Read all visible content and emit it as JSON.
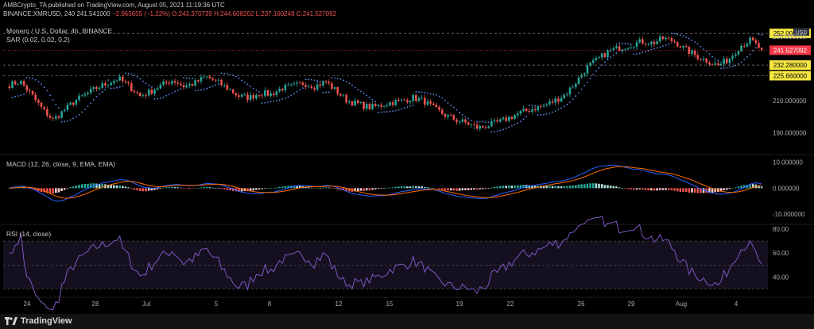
{
  "header": {
    "line1": "AMBCrypto_TA published on TradingView.com, August 05, 2021 11:19:36 UTC",
    "symbol": "BINANCE:XMRUSD, 240",
    "last": "241.541000",
    "change": "−2.965655 (−1.22%)",
    "ohlc": "O:243.370739 H:244.608202 L:237.160248 C:241.527092"
  },
  "price_legend": {
    "title": "Monero / U.S. Dollar, 4h, BINANCE",
    "indicator": "SAR (0.02, 0.02, 0.2)"
  },
  "macd_legend": "MACD (12, 26, close, 9, EMA, EMA)",
  "rsi_legend": "RSI (14, close)",
  "footer": {
    "brand": "TradingView"
  },
  "colors": {
    "up": "#26a69a",
    "down": "#ef5350",
    "sar": "#5b8ff0",
    "rsi": "#7e57c2",
    "macd": "#2962ff",
    "signal": "#ff6d00",
    "price_tag": "#f23645",
    "level_tag": "#f5e642"
  },
  "chart_data": [
    {
      "type": "candlestick",
      "title": "Monero / U.S. Dollar, 4h, BINANCE",
      "ylim": [
        178,
        258
      ],
      "y_ticks": [
        190.0,
        210.0,
        250.0
      ],
      "y_tick_labels": [
        "190.000000",
        "210.000000",
        "250.000000"
      ],
      "x_ticks": [
        "24",
        "28",
        "Jul",
        "5",
        "8",
        "12",
        "15",
        "19",
        "22",
        "26",
        "29",
        "Aug",
        "4"
      ],
      "price_levels": [
        {
          "value": 252.0,
          "label": "252.000000",
          "style": "dashed"
        },
        {
          "value": 241.527092,
          "label": "241.527092",
          "style": "last"
        },
        {
          "value": 232.28,
          "label": "232.280000",
          "style": "dashed"
        },
        {
          "value": 225.66,
          "label": "225.660000",
          "style": "dashed"
        }
      ],
      "currency_tag": "USD",
      "approx_close_path": [
        220,
        222,
        214,
        205,
        198,
        204,
        210,
        214,
        218,
        221,
        224,
        219,
        213,
        216,
        220,
        223,
        219,
        221,
        225,
        222,
        218,
        213,
        212,
        215,
        214,
        218,
        219,
        221,
        219,
        222,
        216,
        210,
        208,
        206,
        207,
        209,
        210,
        212,
        210,
        205,
        201,
        198,
        196,
        193,
        195,
        197,
        200,
        203,
        205,
        207,
        210,
        214,
        222,
        231,
        236,
        241,
        243,
        245,
        247,
        246,
        249,
        247,
        242,
        238,
        235,
        232,
        236,
        244,
        248,
        241.5
      ]
    },
    {
      "type": "macd",
      "title": "MACD (12, 26, close, 9, EMA, EMA)",
      "ylim": [
        -13,
        12
      ],
      "y_tick_labels": [
        "10.000000",
        "0.000000",
        "-10.000000"
      ]
    },
    {
      "type": "rsi",
      "title": "RSI (14, close)",
      "ylim": [
        25,
        82
      ],
      "y_tick_labels": [
        "80.00",
        "60.00",
        "40.00"
      ],
      "bands": [
        70,
        30
      ],
      "middle": 50
    }
  ]
}
